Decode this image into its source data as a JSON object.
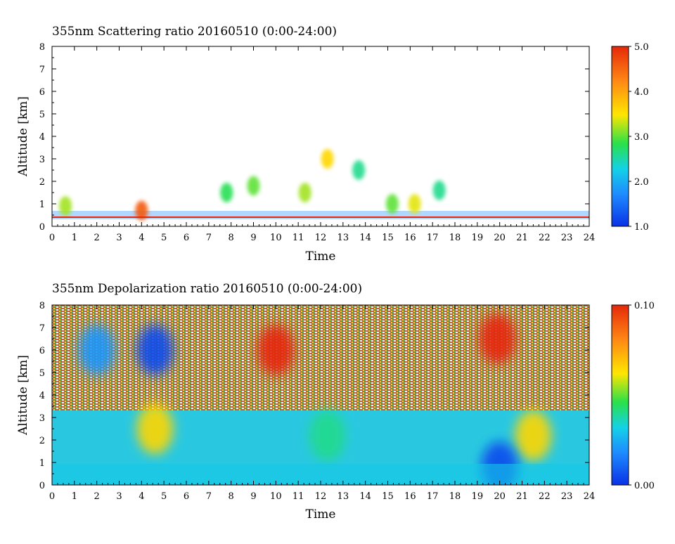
{
  "chart_data": [
    {
      "type": "heatmap",
      "title": "355nm Scattering ratio  20160510 (0:00-24:00)",
      "xlabel": "Time",
      "ylabel": "Altitude [km]",
      "xlim": [
        0,
        24
      ],
      "ylim": [
        0,
        8
      ],
      "x_ticks": [
        "0",
        "1",
        "2",
        "3",
        "4",
        "5",
        "6",
        "7",
        "8",
        "9",
        "10",
        "11",
        "12",
        "13",
        "14",
        "15",
        "16",
        "17",
        "18",
        "19",
        "20",
        "21",
        "22",
        "23",
        "24"
      ],
      "y_ticks": [
        "0",
        "1",
        "2",
        "3",
        "4",
        "5",
        "6",
        "7",
        "8"
      ],
      "colorbar": {
        "min": 1.0,
        "max": 5.0,
        "tick_labels": [
          "1.0",
          "2.0",
          "3.0",
          "4.0",
          "5.0"
        ]
      },
      "colors": {
        "low": "#0a32e6",
        "mid": "#ffe600",
        "high": "#e6280a"
      },
      "features": [
        {
          "x": 0.6,
          "y": 0.9,
          "value": 3.2
        },
        {
          "x": 4.0,
          "y": 0.7,
          "value": 4.6
        },
        {
          "x": 7.8,
          "y": 1.5,
          "value": 2.8
        },
        {
          "x": 9.0,
          "y": 1.8,
          "value": 3.0
        },
        {
          "x": 11.3,
          "y": 1.5,
          "value": 3.2
        },
        {
          "x": 12.3,
          "y": 3.0,
          "value": 3.6
        },
        {
          "x": 13.7,
          "y": 2.5,
          "value": 2.6
        },
        {
          "x": 15.2,
          "y": 1.0,
          "value": 3.0
        },
        {
          "x": 16.2,
          "y": 1.0,
          "value": 3.4
        },
        {
          "x": 17.3,
          "y": 1.6,
          "value": 2.6
        }
      ]
    },
    {
      "type": "heatmap",
      "title": "355nm Depolarization ratio  20160510 (0:00-24:00)",
      "xlabel": "Time",
      "ylabel": "Altitude [km]",
      "xlim": [
        0,
        24
      ],
      "ylim": [
        0,
        8
      ],
      "x_ticks": [
        "0",
        "1",
        "2",
        "3",
        "4",
        "5",
        "6",
        "7",
        "8",
        "9",
        "10",
        "11",
        "12",
        "13",
        "14",
        "15",
        "16",
        "17",
        "18",
        "19",
        "20",
        "21",
        "22",
        "23",
        "24"
      ],
      "y_ticks": [
        "0",
        "1",
        "2",
        "3",
        "4",
        "5",
        "6",
        "7",
        "8"
      ],
      "colorbar": {
        "min": 0.0,
        "max": 0.1,
        "tick_labels": [
          "0.00",
          "0.10"
        ]
      },
      "colors": {
        "low": "#0a32e6",
        "mid": "#ffe600",
        "high": "#e6280a"
      },
      "features": [
        {
          "x": 2.0,
          "y": 6.0,
          "value": 0.02
        },
        {
          "x": 4.6,
          "y": 2.5,
          "value": 0.065
        },
        {
          "x": 4.6,
          "y": 6.0,
          "value": 0.005
        },
        {
          "x": 10.0,
          "y": 6.0,
          "value": 0.1
        },
        {
          "x": 12.3,
          "y": 2.2,
          "value": 0.04
        },
        {
          "x": 19.9,
          "y": 6.5,
          "value": 0.1
        },
        {
          "x": 21.5,
          "y": 2.2,
          "value": 0.065
        },
        {
          "x": 20.0,
          "y": 0.8,
          "value": 0.005
        }
      ]
    }
  ]
}
